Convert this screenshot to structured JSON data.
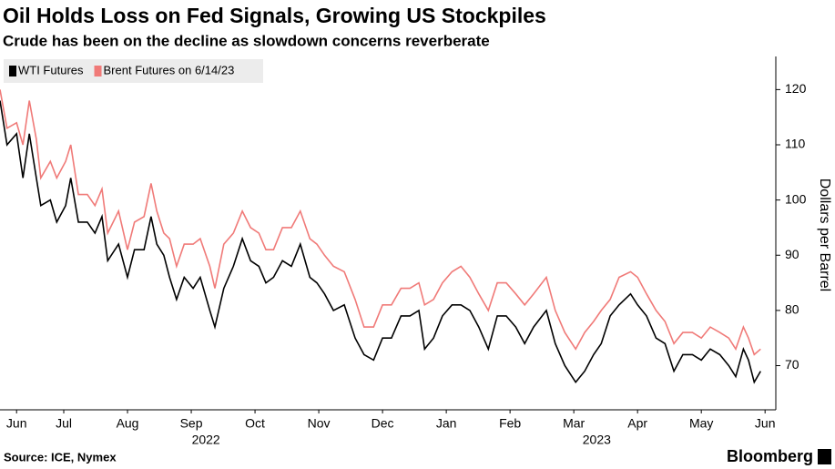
{
  "title": "Oil Holds Loss on Fed Signals, Growing US Stockpiles",
  "subtitle": "Crude has been on the decline as slowdown concerns reverberate",
  "source": "Source: ICE, Nymex",
  "brand": "Bloomberg",
  "chart_data": {
    "type": "line",
    "x": [
      0.5,
      0.61,
      0.76,
      0.86,
      0.96,
      1.07,
      1.14,
      1.29,
      1.39,
      1.53,
      1.61,
      1.73,
      1.87,
      1.99,
      2.1,
      2.19,
      2.36,
      2.5,
      2.61,
      2.76,
      2.87,
      2.96,
      3.07,
      3.16,
      3.27,
      3.39,
      3.53,
      3.64,
      3.79,
      3.87,
      4.01,
      4.16,
      4.3,
      4.43,
      4.56,
      4.67,
      4.79,
      4.93,
      5.07,
      5.21,
      5.36,
      5.47,
      5.59,
      5.73,
      5.9,
      6.07,
      6.21,
      6.36,
      6.5,
      6.64,
      6.79,
      6.93,
      7.07,
      7.16,
      7.3,
      7.44,
      7.59,
      7.73,
      7.87,
      8.01,
      8.16,
      8.3,
      8.44,
      8.59,
      8.73,
      8.87,
      9.07,
      9.21,
      9.36,
      9.53,
      9.67,
      9.81,
      9.93,
      10.07,
      10.21,
      10.39,
      10.5,
      10.64,
      10.79,
      10.93,
      11.07,
      11.21,
      11.36,
      11.5,
      11.64,
      11.79,
      11.93,
      12.04,
      12.16,
      12.24,
      12.33,
      12.43
    ],
    "series": [
      {
        "name": "WTI Futures",
        "color": "#000000",
        "values": [
          118,
          110,
          112,
          104,
          112,
          104,
          99,
          100,
          96,
          99,
          104,
          96,
          96,
          94,
          97,
          89,
          92,
          86,
          91,
          91,
          97,
          92,
          90,
          86,
          82,
          86,
          84,
          86,
          80,
          77,
          84,
          88,
          93,
          89,
          88,
          85,
          86,
          89,
          88,
          92,
          86,
          85,
          83,
          80,
          81,
          75,
          72,
          71,
          75,
          75,
          79,
          79,
          80,
          73,
          75,
          79,
          81,
          81,
          80,
          77,
          73,
          79,
          79,
          77,
          74,
          77,
          80,
          74,
          70,
          67,
          69,
          72,
          74,
          79,
          81,
          83,
          81,
          79,
          75,
          74,
          69,
          72,
          72,
          71,
          73,
          72,
          70,
          68,
          73,
          71,
          67,
          69
        ]
      },
      {
        "name": "Brent Futures on 6/14/23",
        "color": "#f07a78",
        "values": [
          120,
          113,
          114,
          110,
          118,
          111,
          104,
          107,
          104,
          107,
          110,
          101,
          101,
          99,
          102,
          94,
          98,
          91,
          96,
          97,
          103,
          98,
          94,
          93,
          88,
          92,
          92,
          93,
          88,
          84,
          92,
          94,
          98,
          95,
          94,
          91,
          91,
          95,
          95,
          98,
          93,
          92,
          90,
          88,
          87,
          82,
          77,
          77,
          81,
          81,
          84,
          84,
          85,
          81,
          82,
          85,
          87,
          88,
          86,
          83,
          80,
          85,
          85,
          83,
          81,
          83,
          86,
          80,
          76,
          73,
          76,
          78,
          80,
          82,
          86,
          87,
          86,
          83,
          80,
          78,
          74,
          76,
          76,
          75,
          77,
          76,
          75,
          73,
          77,
          75,
          72,
          73
        ]
      }
    ],
    "xlim": [
      0.5,
      12.64
    ],
    "xticks": [
      {
        "value": 0.76,
        "label": "Jun"
      },
      {
        "value": 1.5,
        "label": "Jul"
      },
      {
        "value": 2.5,
        "label": "Aug"
      },
      {
        "value": 3.5,
        "label": "Sep"
      },
      {
        "value": 4.5,
        "label": "Oct"
      },
      {
        "value": 5.5,
        "label": "Nov"
      },
      {
        "value": 6.5,
        "label": "Dec"
      },
      {
        "value": 7.5,
        "label": "Jan"
      },
      {
        "value": 8.5,
        "label": "Feb"
      },
      {
        "value": 9.5,
        "label": "Mar"
      },
      {
        "value": 10.5,
        "label": "Apr"
      },
      {
        "value": 11.5,
        "label": "May"
      },
      {
        "value": 12.5,
        "label": "Jun"
      }
    ],
    "year_labels": [
      {
        "value": 3.73,
        "label": "2022"
      },
      {
        "value": 9.86,
        "label": "2023"
      }
    ],
    "ylim": [
      62,
      126
    ],
    "yticks": [
      70,
      80,
      90,
      100,
      110,
      120
    ],
    "ylabel": "Dollars per Barrel",
    "grid": false,
    "legend": "top-left"
  }
}
